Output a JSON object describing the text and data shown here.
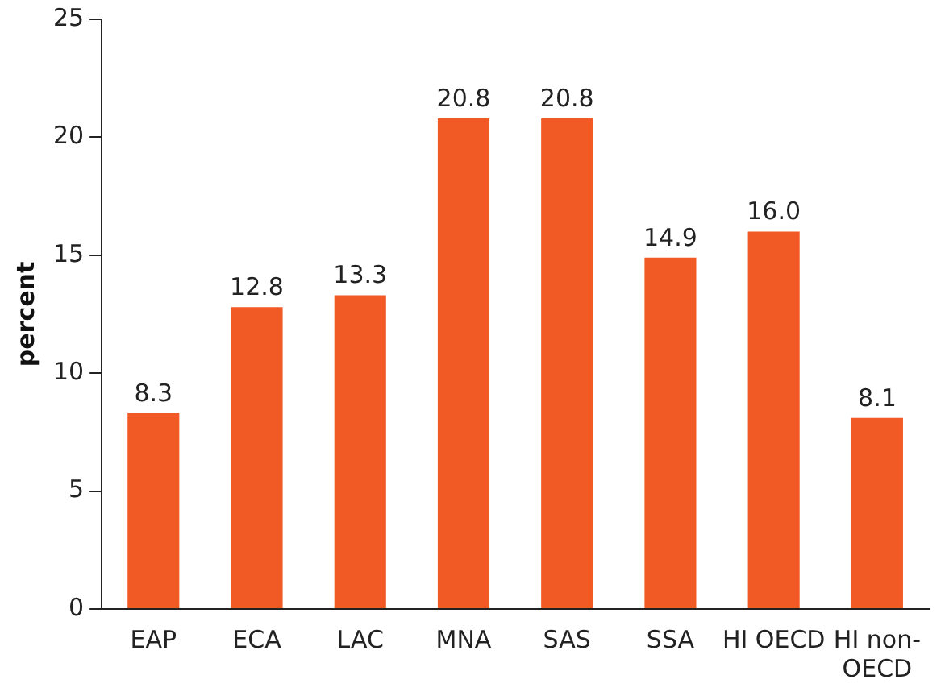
{
  "chart_data": {
    "type": "bar",
    "ylabel": "percent",
    "categories": [
      "EAP",
      "ECA",
      "LAC",
      "MNA",
      "SAS",
      "SSA",
      "HI OECD",
      "HI non-OECD"
    ],
    "values": [
      8.3,
      12.8,
      13.3,
      20.8,
      20.8,
      14.9,
      16.0,
      8.1
    ],
    "value_labels": [
      "8.3",
      "12.8",
      "13.3",
      "20.8",
      "20.8",
      "14.9",
      "16.0",
      "8.1"
    ],
    "color": "#f15a24",
    "ylim": [
      0,
      25
    ],
    "yticks": [
      0,
      5,
      10,
      15,
      20,
      25
    ],
    "grid": false,
    "legend": false
  }
}
